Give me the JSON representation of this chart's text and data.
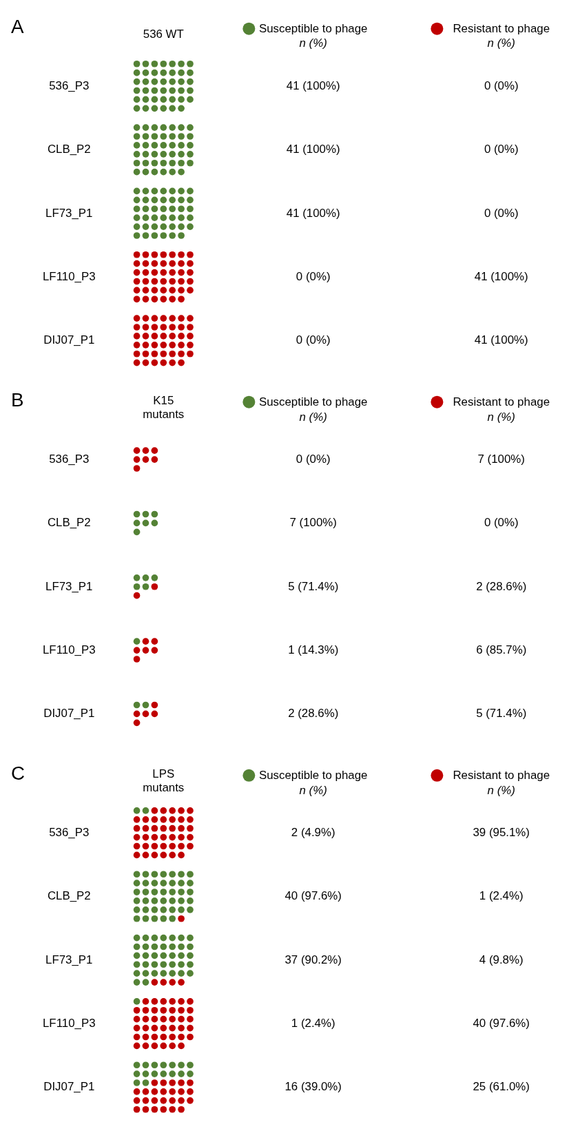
{
  "chart_data": [
    {
      "type": "other",
      "title": "A",
      "subtitle": "536 WT",
      "legend": "top",
      "annotations": [
        "n (%)",
        "n (%)"
      ],
      "categories": [
        "536_P3",
        "CLB_P2",
        "LF73_P1",
        "LF110_P3",
        "DIJ07_P1"
      ],
      "series": [
        {
          "name": "Susceptible to phage",
          "color": "#548235",
          "values": [
            41,
            41,
            41,
            0,
            0
          ],
          "value_labels": [
            "41 (100%)",
            "41 (100%)",
            "41 (100%)",
            "0 (0%)",
            "0 (0%)"
          ]
        },
        {
          "name": "Resistant to phage",
          "color": "#c00000",
          "values": [
            0,
            0,
            0,
            41,
            41
          ],
          "value_labels": [
            "0 (0%)",
            "0 (0%)",
            "0 (0%)",
            "41 (100%)",
            "41 (100%)"
          ]
        }
      ]
    },
    {
      "type": "other",
      "title": "B",
      "subtitle": "K15\nmutants",
      "legend": "top",
      "annotations": [
        "n (%)",
        "n (%)"
      ],
      "categories": [
        "536_P3",
        "CLB_P2",
        "LF73_P1",
        "LF110_P3",
        "DIJ07_P1"
      ],
      "series": [
        {
          "name": "Susceptible to phage",
          "color": "#548235",
          "values": [
            0,
            7,
            5,
            1,
            2
          ],
          "value_labels": [
            "0 (0%)",
            "7 (100%)",
            "5 (71.4%)",
            "1 (14.3%)",
            "2 (28.6%)"
          ]
        },
        {
          "name": "Resistant to phage",
          "color": "#c00000",
          "values": [
            7,
            0,
            2,
            6,
            5
          ],
          "value_labels": [
            "7 (100%)",
            "0 (0%)",
            "2 (28.6%)",
            "6 (85.7%)",
            "5 (71.4%)"
          ]
        }
      ]
    },
    {
      "type": "other",
      "title": "C",
      "subtitle": "LPS\nmutants",
      "legend": "top",
      "annotations": [
        "n (%)",
        "n (%)"
      ],
      "categories": [
        "536_P3",
        "CLB_P2",
        "LF73_P1",
        "LF110_P3",
        "DIJ07_P1"
      ],
      "series": [
        {
          "name": "Susceptible to phage",
          "color": "#548235",
          "values": [
            2,
            40,
            37,
            1,
            16
          ],
          "value_labels": [
            "2 (4.9%)",
            "40 (97.6%)",
            "37 (90.2%)",
            "1 (2.4%)",
            "16 (39.0%)"
          ]
        },
        {
          "name": "Resistant to phage",
          "color": "#c00000",
          "values": [
            39,
            1,
            4,
            40,
            25
          ],
          "value_labels": [
            "39 (95.1%)",
            "1 (2.4%)",
            "4 (9.8%)",
            "40 (97.6%)",
            "25 (61.0%)"
          ]
        }
      ]
    }
  ]
}
